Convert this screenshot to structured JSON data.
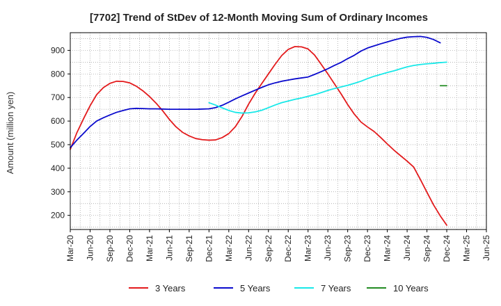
{
  "chart_data": {
    "type": "line",
    "title": "[7702]  Trend of StDev of 12-Month Moving Sum of Ordinary Incomes",
    "xlabel": "",
    "ylabel": "Amount (million yen)",
    "ylim": [
      140,
      975
    ],
    "yticks": [
      200,
      300,
      400,
      500,
      600,
      700,
      800,
      900
    ],
    "x_categories": [
      "Mar-20",
      "Jun-20",
      "Sep-20",
      "Dec-20",
      "Mar-21",
      "Jun-21",
      "Sep-21",
      "Dec-21",
      "Mar-22",
      "Jun-22",
      "Sep-22",
      "Dec-22",
      "Mar-23",
      "Jun-23",
      "Sep-23",
      "Dec-23",
      "Mar-24",
      "Jun-24",
      "Sep-24",
      "Dec-24",
      "Mar-25",
      "Jun-25"
    ],
    "grid": true,
    "legend_position": "bottom",
    "series": [
      {
        "name": "3 Years",
        "color": "#e31a1c",
        "points": [
          [
            0,
            480
          ],
          [
            0.33,
            550
          ],
          [
            0.67,
            610
          ],
          [
            1,
            665
          ],
          [
            1.33,
            712
          ],
          [
            1.67,
            742
          ],
          [
            2,
            760
          ],
          [
            2.33,
            769
          ],
          [
            2.67,
            768
          ],
          [
            3,
            762
          ],
          [
            3.33,
            748
          ],
          [
            3.67,
            728
          ],
          [
            4,
            704
          ],
          [
            4.33,
            676
          ],
          [
            4.67,
            643
          ],
          [
            5,
            607
          ],
          [
            5.33,
            576
          ],
          [
            5.67,
            552
          ],
          [
            6,
            537
          ],
          [
            6.33,
            526
          ],
          [
            6.67,
            521
          ],
          [
            7,
            519
          ],
          [
            7.33,
            520
          ],
          [
            7.67,
            530
          ],
          [
            8,
            547
          ],
          [
            8.33,
            576
          ],
          [
            8.67,
            620
          ],
          [
            9,
            672
          ],
          [
            9.33,
            718
          ],
          [
            9.67,
            760
          ],
          [
            10,
            800
          ],
          [
            10.33,
            840
          ],
          [
            10.67,
            878
          ],
          [
            11,
            904
          ],
          [
            11.33,
            916
          ],
          [
            11.67,
            915
          ],
          [
            12,
            906
          ],
          [
            12.33,
            880
          ],
          [
            12.67,
            840
          ],
          [
            13,
            800
          ],
          [
            13.33,
            758
          ],
          [
            13.67,
            715
          ],
          [
            14,
            670
          ],
          [
            14.33,
            630
          ],
          [
            14.67,
            596
          ],
          [
            15,
            575
          ],
          [
            15.33,
            556
          ],
          [
            15.67,
            530
          ],
          [
            16,
            503
          ],
          [
            16.33,
            477
          ],
          [
            16.67,
            453
          ],
          [
            17,
            430
          ],
          [
            17.33,
            405
          ],
          [
            17.67,
            352
          ],
          [
            18,
            298
          ],
          [
            18.33,
            245
          ],
          [
            18.67,
            198
          ],
          [
            19,
            158
          ]
        ]
      },
      {
        "name": "5 Years",
        "color": "#0a0acd",
        "points": [
          [
            0,
            487
          ],
          [
            0.33,
            519
          ],
          [
            0.67,
            548
          ],
          [
            1,
            577
          ],
          [
            1.33,
            600
          ],
          [
            1.67,
            614
          ],
          [
            2,
            626
          ],
          [
            2.33,
            637
          ],
          [
            2.67,
            645
          ],
          [
            3,
            652
          ],
          [
            3.33,
            654
          ],
          [
            3.67,
            653
          ],
          [
            4,
            652
          ],
          [
            4.33,
            652
          ],
          [
            4.67,
            651
          ],
          [
            5,
            650
          ],
          [
            5.33,
            650
          ],
          [
            5.67,
            650
          ],
          [
            6,
            650
          ],
          [
            6.33,
            650
          ],
          [
            6.67,
            651
          ],
          [
            7,
            652
          ],
          [
            7.33,
            657
          ],
          [
            7.67,
            667
          ],
          [
            8,
            680
          ],
          [
            8.33,
            694
          ],
          [
            8.67,
            707
          ],
          [
            9,
            719
          ],
          [
            9.33,
            731
          ],
          [
            9.67,
            743
          ],
          [
            10,
            754
          ],
          [
            10.33,
            762
          ],
          [
            10.67,
            769
          ],
          [
            11,
            774
          ],
          [
            11.33,
            779
          ],
          [
            11.67,
            783
          ],
          [
            12,
            787
          ],
          [
            12.33,
            798
          ],
          [
            12.67,
            810
          ],
          [
            13,
            822
          ],
          [
            13.33,
            836
          ],
          [
            13.67,
            849
          ],
          [
            14,
            865
          ],
          [
            14.33,
            879
          ],
          [
            14.67,
            897
          ],
          [
            15,
            910
          ],
          [
            15.33,
            919
          ],
          [
            15.67,
            928
          ],
          [
            16,
            936
          ],
          [
            16.33,
            944
          ],
          [
            16.67,
            951
          ],
          [
            17,
            956
          ],
          [
            17.33,
            958
          ],
          [
            17.67,
            959
          ],
          [
            18,
            955
          ],
          [
            18.33,
            946
          ],
          [
            18.67,
            932
          ]
        ]
      },
      {
        "name": "7 Years",
        "color": "#17e8e8",
        "points": [
          [
            7,
            678
          ],
          [
            7.33,
            668
          ],
          [
            7.67,
            656
          ],
          [
            8,
            645
          ],
          [
            8.33,
            637
          ],
          [
            8.67,
            634
          ],
          [
            9,
            635
          ],
          [
            9.33,
            639
          ],
          [
            9.67,
            646
          ],
          [
            10,
            657
          ],
          [
            10.33,
            668
          ],
          [
            10.67,
            678
          ],
          [
            11,
            685
          ],
          [
            11.33,
            692
          ],
          [
            11.67,
            698
          ],
          [
            12,
            705
          ],
          [
            12.33,
            712
          ],
          [
            12.67,
            721
          ],
          [
            13,
            730
          ],
          [
            13.33,
            738
          ],
          [
            13.67,
            745
          ],
          [
            14,
            752
          ],
          [
            14.33,
            760
          ],
          [
            14.67,
            769
          ],
          [
            15,
            780
          ],
          [
            15.33,
            790
          ],
          [
            15.67,
            798
          ],
          [
            16,
            806
          ],
          [
            16.33,
            813
          ],
          [
            16.67,
            822
          ],
          [
            17,
            830
          ],
          [
            17.33,
            836
          ],
          [
            17.67,
            840
          ],
          [
            18,
            843
          ],
          [
            18.33,
            845
          ],
          [
            18.67,
            848
          ],
          [
            19,
            850
          ]
        ]
      },
      {
        "name": "10 Years",
        "color": "#228b22",
        "points": [
          [
            18.67,
            750
          ],
          [
            19,
            750
          ]
        ]
      }
    ]
  }
}
